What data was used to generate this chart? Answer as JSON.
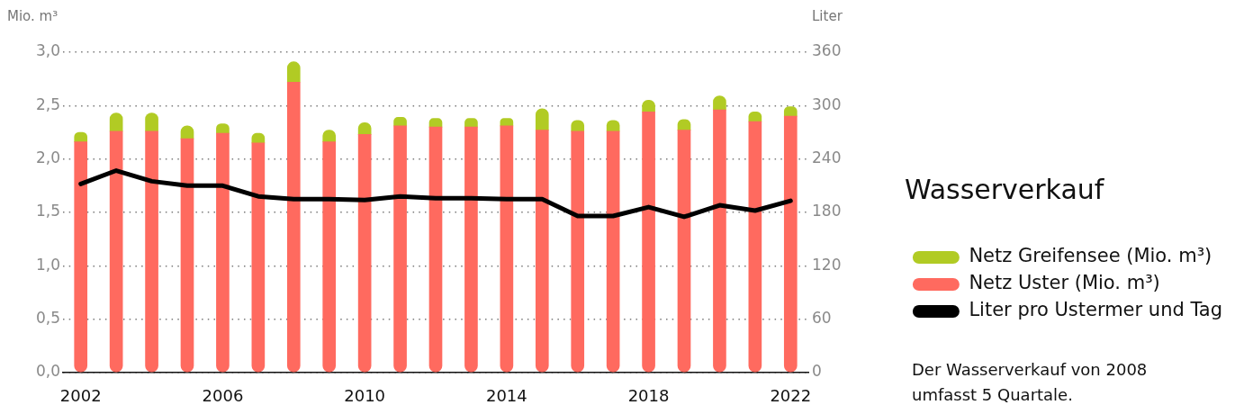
{
  "chart_data": {
    "type": "bar",
    "stacked": true,
    "categories": [
      "2002",
      null,
      null,
      null,
      "2006",
      null,
      null,
      null,
      "2010",
      null,
      null,
      null,
      "2014",
      null,
      null,
      null,
      "2018",
      null,
      null,
      null,
      "2022"
    ],
    "series": [
      {
        "name": "Netz Uster (Mio. m³)",
        "color": "#ff6a5f",
        "values": [
          2.16,
          2.26,
          2.26,
          2.19,
          2.24,
          2.15,
          2.72,
          2.16,
          2.23,
          2.31,
          2.3,
          2.3,
          2.31,
          2.27,
          2.26,
          2.26,
          2.44,
          2.27,
          2.46,
          2.35,
          2.4
        ]
      },
      {
        "name": "Netz Greifensee (Mio. m³)",
        "color": "#b1cb24",
        "values": [
          0.09,
          0.17,
          0.17,
          0.12,
          0.09,
          0.09,
          0.19,
          0.11,
          0.11,
          0.08,
          0.08,
          0.08,
          0.07,
          0.2,
          0.1,
          0.1,
          0.11,
          0.1,
          0.13,
          0.09,
          0.09
        ]
      },
      {
        "name": "Liter pro Ustermer und Tag",
        "type": "line",
        "axis": "y2",
        "color": "#000000",
        "values": [
          212,
          227,
          215,
          210,
          210,
          198,
          195,
          195,
          194,
          198,
          196,
          196,
          195,
          195,
          176,
          176,
          186,
          175,
          188,
          182,
          193
        ]
      }
    ],
    "ylim": [
      0,
      3
    ],
    "yticks": [
      {
        "value": 0,
        "label": "0,0"
      },
      {
        "value": 0.5,
        "label": "0,5"
      },
      {
        "value": 1,
        "label": "1,0"
      },
      {
        "value": 1.5,
        "label": "1,5"
      },
      {
        "value": 2,
        "label": "2,0"
      },
      {
        "value": 2.5,
        "label": "2,5"
      },
      {
        "value": 3,
        "label": "3,0"
      }
    ],
    "y2lim": [
      0,
      360
    ],
    "y2ticks": [
      0,
      60,
      120,
      180,
      240,
      300,
      360
    ],
    "ylabel": "Mio. m³",
    "y2label": "Liter",
    "legend": "right",
    "legend_title": "Wasserverkauf",
    "grid": "y",
    "annotations": [
      "Der Wasserverkauf von 2008 umfasst 5 Quartale."
    ]
  }
}
